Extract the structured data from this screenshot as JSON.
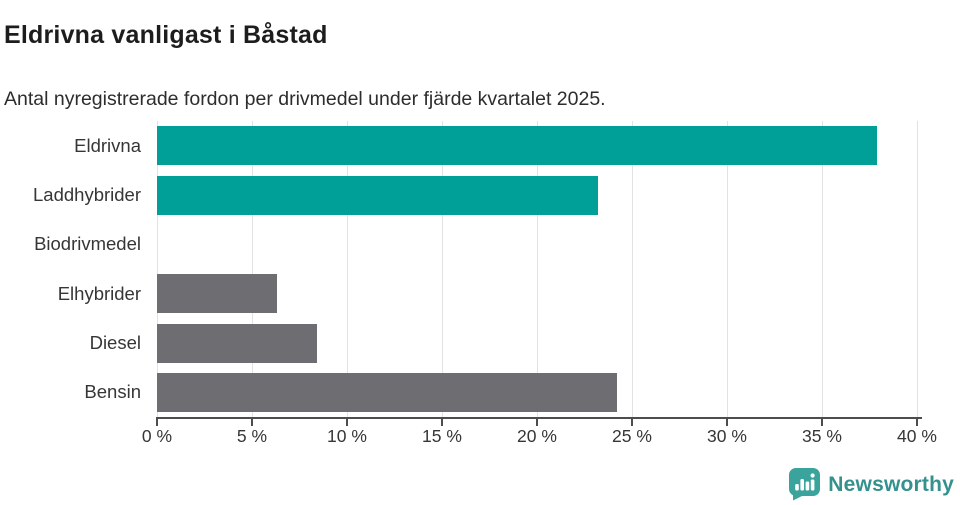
{
  "header": {
    "title": "Eldrivna vanligast i Båstad",
    "subtitle": "Antal nyregistrerade fordon per drivmedel under fjärde kvartalet 2025."
  },
  "chart_data": {
    "type": "bar",
    "orientation": "horizontal",
    "title": "Eldrivna vanligast i Båstad",
    "subtitle": "Antal nyregistrerade fordon per drivmedel under fjärde kvartalet 2025.",
    "categories": [
      "Eldrivna",
      "Laddhybrider",
      "Biodrivmedel",
      "Elhybrider",
      "Diesel",
      "Bensin"
    ],
    "values": [
      37.9,
      23.2,
      0,
      6.3,
      8.4,
      24.2
    ],
    "bar_colors": [
      "#00a099",
      "#00a099",
      "#00a099",
      "#6d6d72",
      "#6d6d72",
      "#6d6d72"
    ],
    "xlabel": "",
    "ylabel": "",
    "xlim": [
      0,
      40
    ],
    "x_tick_step": 5,
    "x_tick_labels": [
      "0 %",
      "5 %",
      "10 %",
      "15 %",
      "20 %",
      "25 %",
      "30 %",
      "35 %",
      "40 %"
    ],
    "grid": "vertical",
    "legend": "none"
  },
  "colors": {
    "accent_teal": "#00a099",
    "neutral_gray": "#6d6d72",
    "gridline": "#e2e2e2",
    "axis": "#4d4d4d",
    "brand_teal": "#35918e",
    "logo_icon_teal": "#3aa39c"
  },
  "footer": {
    "brand": "Newsworthy"
  }
}
